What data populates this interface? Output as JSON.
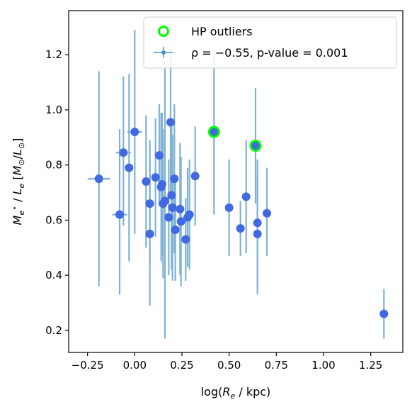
{
  "chart_data": {
    "type": "scatter",
    "xlabel": "log(R_e / kpc)",
    "ylabel": "M_e^⋆ / L_e  [M_⊙/L_⊙]",
    "xlim": [
      -0.35,
      1.42
    ],
    "ylim": [
      0.12,
      1.36
    ],
    "xticks": [
      "−0.25",
      "0.00",
      "0.25",
      "0.50",
      "0.75",
      "1.00",
      "1.25"
    ],
    "xtick_values": [
      -0.25,
      0,
      0.25,
      0.5,
      0.75,
      1.0,
      1.25
    ],
    "yticks": [
      "0.2",
      "0.4",
      "0.6",
      "0.8",
      "1.0",
      "1.2"
    ],
    "ytick_values": [
      0.2,
      0.4,
      0.6,
      0.8,
      1.0,
      1.2
    ],
    "grid": false,
    "legend_position": "upper-right",
    "colors": {
      "points": "#4169e1",
      "errorbars": "#7fb2d5",
      "outliers": "#00ff00"
    },
    "series": [
      {
        "name": "ρ = −0.55, p-value = 0.001",
        "points": [
          {
            "x": -0.19,
            "y": 0.75,
            "ylo": 0.36,
            "yhi": 1.14,
            "xlo": -0.25,
            "xhi": -0.13
          },
          {
            "x": -0.08,
            "y": 0.62,
            "ylo": 0.33,
            "yhi": 0.93,
            "xlo": -0.12,
            "xhi": -0.04
          },
          {
            "x": -0.06,
            "y": 0.845,
            "ylo": 0.58,
            "yhi": 1.12,
            "xlo": -0.1,
            "xhi": -0.02
          },
          {
            "x": -0.03,
            "y": 0.79,
            "ylo": 0.45,
            "yhi": 1.13,
            "xlo": -0.05,
            "xhi": -0.01
          },
          {
            "x": 0.0,
            "y": 0.92,
            "ylo": 0.55,
            "yhi": 1.29,
            "xlo": -0.04,
            "xhi": 0.04
          },
          {
            "x": 0.06,
            "y": 0.74,
            "ylo": 0.5,
            "yhi": 0.98
          },
          {
            "x": 0.08,
            "y": 0.66,
            "ylo": 0.43,
            "yhi": 0.89
          },
          {
            "x": 0.08,
            "y": 0.55,
            "ylo": 0.29,
            "yhi": 0.82
          },
          {
            "x": 0.11,
            "y": 0.755,
            "ylo": 0.54,
            "yhi": 0.97
          },
          {
            "x": 0.13,
            "y": 0.835,
            "ylo": 0.65,
            "yhi": 1.02
          },
          {
            "x": 0.14,
            "y": 0.72,
            "ylo": 0.45,
            "yhi": 0.99
          },
          {
            "x": 0.145,
            "y": 0.73,
            "ylo": 0.47,
            "yhi": 0.99
          },
          {
            "x": 0.15,
            "y": 0.66,
            "ylo": 0.39,
            "yhi": 0.93
          },
          {
            "x": 0.16,
            "y": 0.67,
            "ylo": 0.17,
            "yhi": 1.17
          },
          {
            "x": 0.18,
            "y": 0.61,
            "ylo": 0.4,
            "yhi": 0.82
          },
          {
            "x": 0.19,
            "y": 0.955,
            "ylo": 0.68,
            "yhi": 1.23
          },
          {
            "x": 0.195,
            "y": 0.69,
            "ylo": 0.42,
            "yhi": 0.96
          },
          {
            "x": 0.2,
            "y": 0.645,
            "ylo": 0.38,
            "yhi": 0.91
          },
          {
            "x": 0.21,
            "y": 0.75,
            "ylo": 0.48,
            "yhi": 1.02
          },
          {
            "x": 0.215,
            "y": 0.565,
            "ylo": 0.38,
            "yhi": 0.75
          },
          {
            "x": 0.24,
            "y": 0.64,
            "ylo": 0.4,
            "yhi": 0.88
          },
          {
            "x": 0.245,
            "y": 0.595,
            "ylo": 0.36,
            "yhi": 0.83
          },
          {
            "x": 0.27,
            "y": 0.53,
            "ylo": 0.38,
            "yhi": 0.68
          },
          {
            "x": 0.28,
            "y": 0.61,
            "ylo": 0.43,
            "yhi": 0.79
          },
          {
            "x": 0.29,
            "y": 0.62,
            "ylo": 0.42,
            "yhi": 0.82
          },
          {
            "x": 0.32,
            "y": 0.76,
            "ylo": 0.58,
            "yhi": 0.94
          },
          {
            "x": 0.42,
            "y": 0.92,
            "ylo": 0.62,
            "yhi": 1.22
          },
          {
            "x": 0.5,
            "y": 0.645,
            "ylo": 0.47,
            "yhi": 0.82
          },
          {
            "x": 0.56,
            "y": 0.57,
            "ylo": 0.47,
            "yhi": 0.67
          },
          {
            "x": 0.59,
            "y": 0.685,
            "ylo": 0.48,
            "yhi": 0.89
          },
          {
            "x": 0.64,
            "y": 0.87,
            "ylo": 0.66,
            "yhi": 1.08
          },
          {
            "x": 0.65,
            "y": 0.59,
            "ylo": 0.36,
            "yhi": 0.82
          },
          {
            "x": 0.65,
            "y": 0.55,
            "ylo": 0.33,
            "yhi": 0.77
          },
          {
            "x": 0.7,
            "y": 0.625,
            "ylo": 0.47,
            "yhi": 0.79
          },
          {
            "x": 1.32,
            "y": 0.26,
            "ylo": 0.17,
            "yhi": 0.35
          }
        ]
      },
      {
        "name": "HP outliers",
        "points": [
          {
            "x": 0.42,
            "y": 0.92
          },
          {
            "x": 0.64,
            "y": 0.87
          }
        ]
      }
    ]
  }
}
